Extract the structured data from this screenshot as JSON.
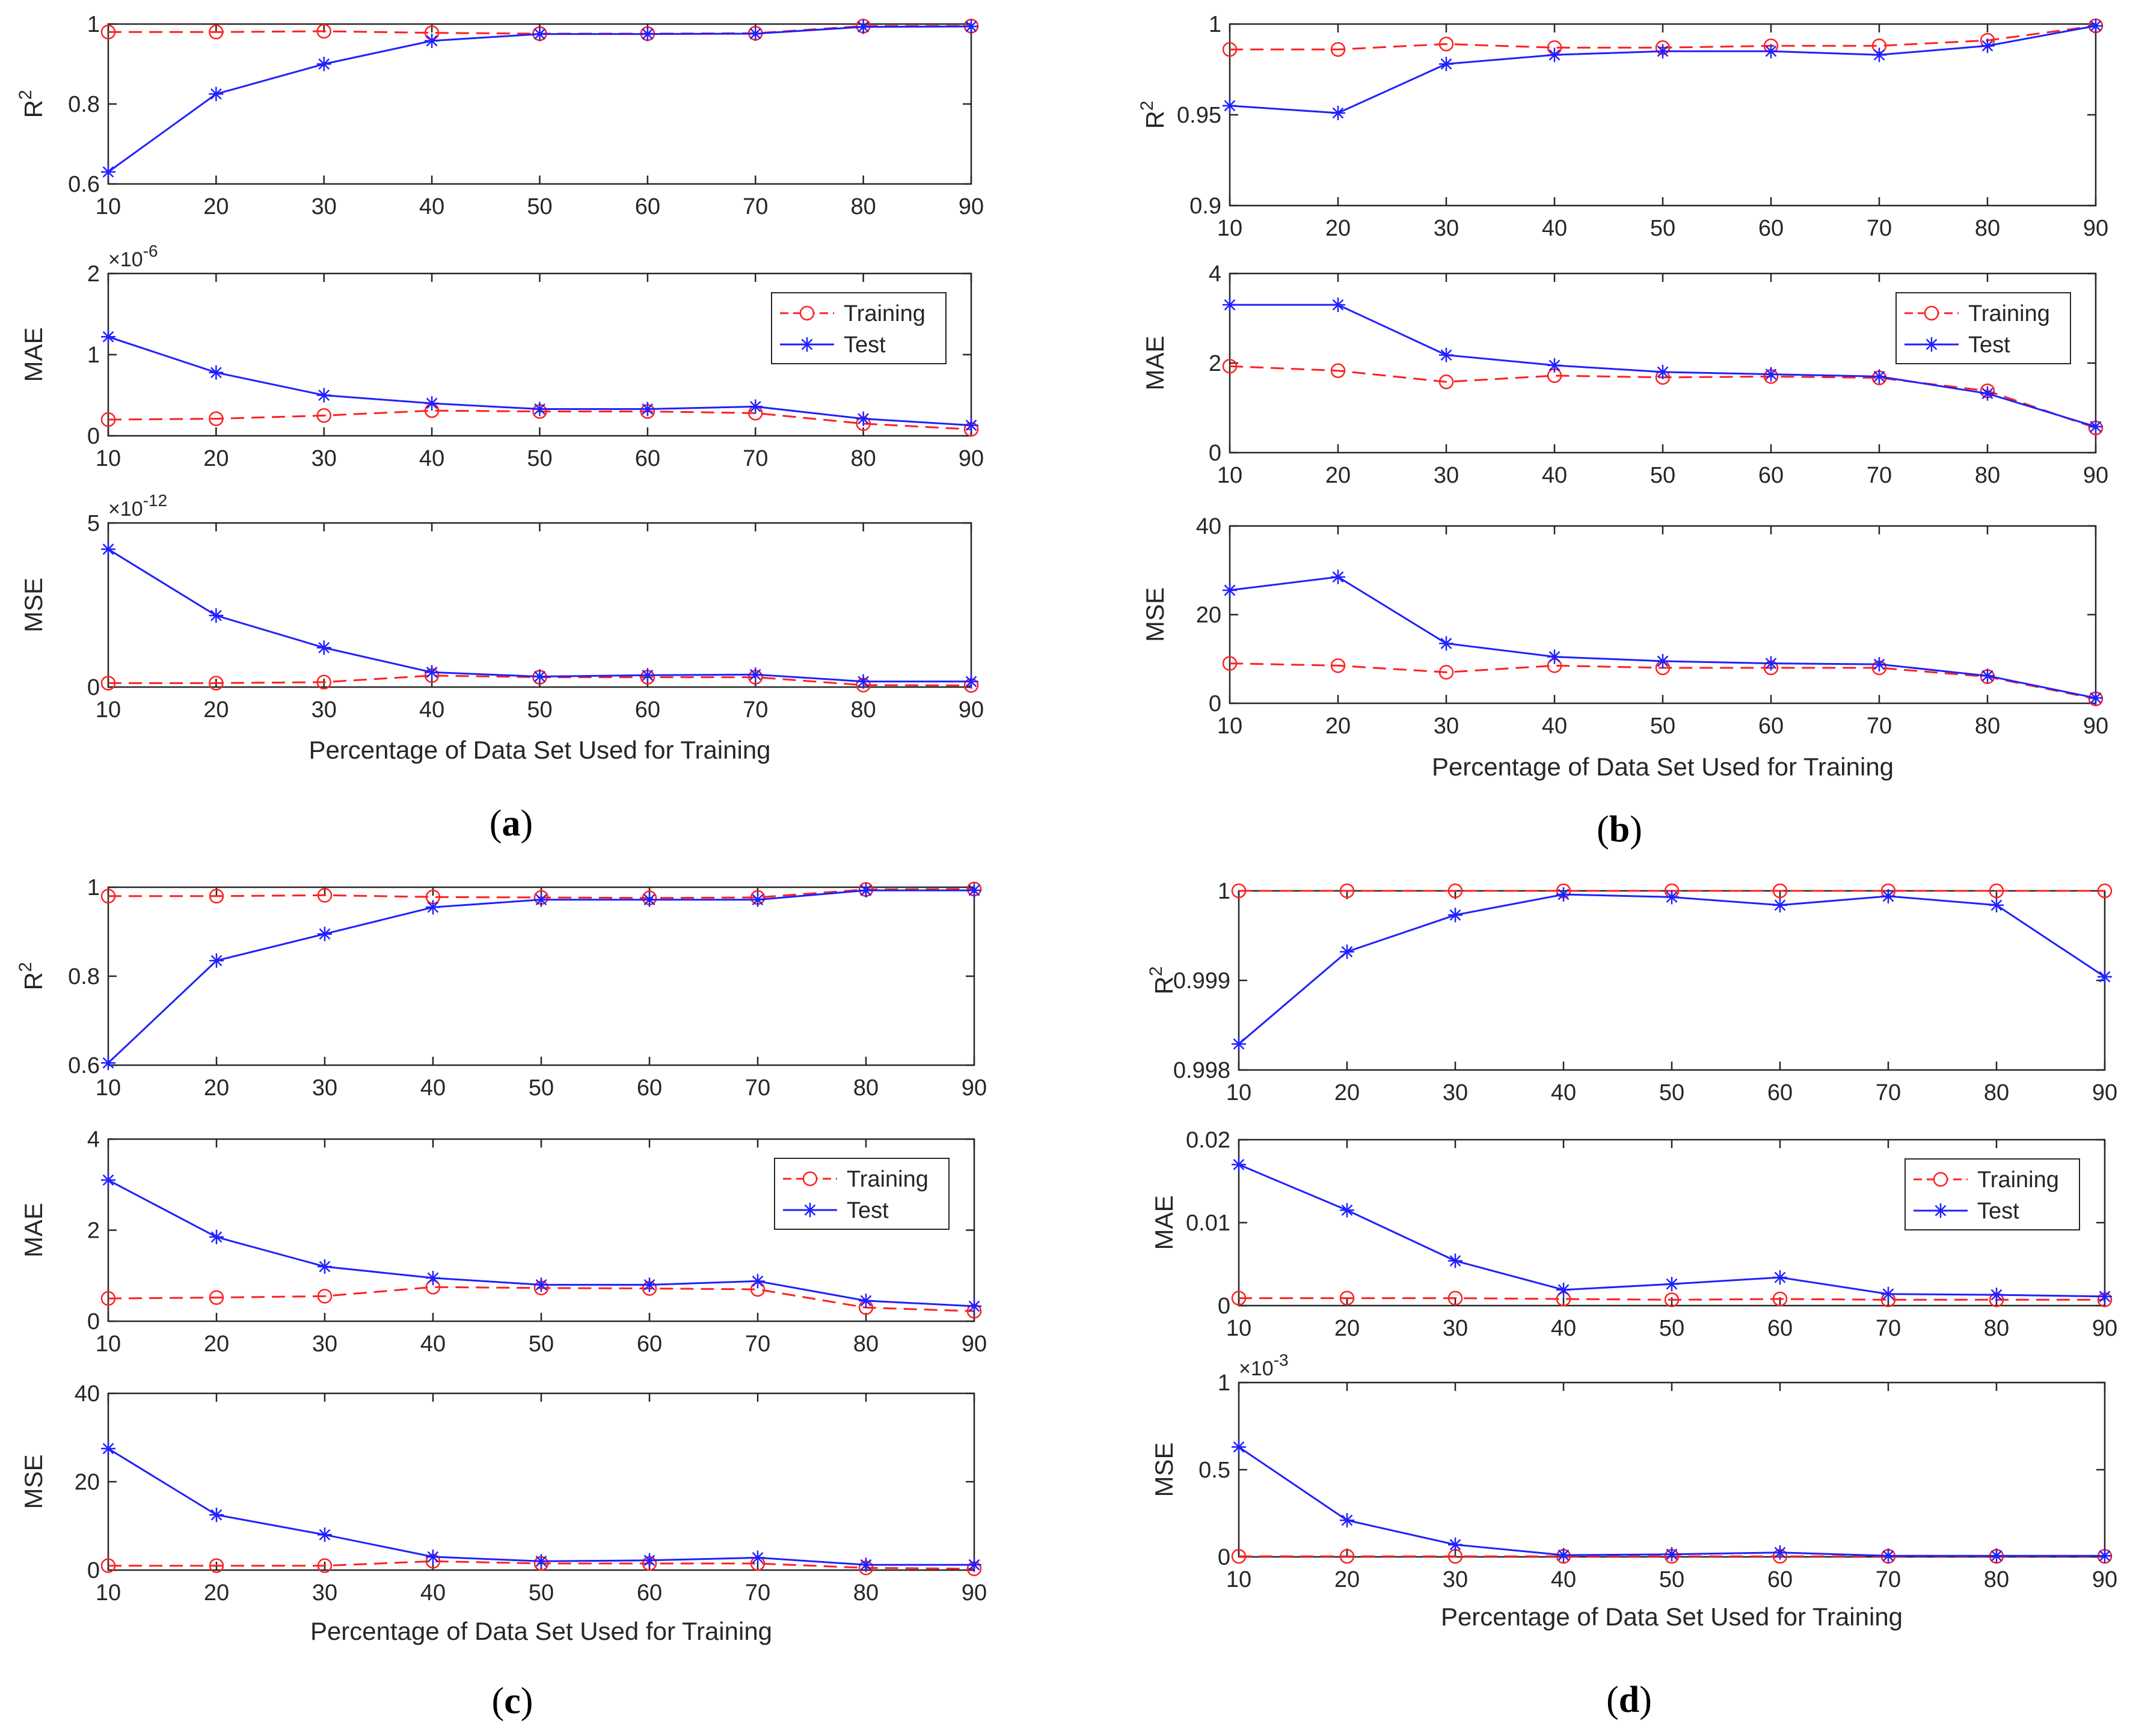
{
  "figure": {
    "panels": [
      {
        "id": "a",
        "caption": "(a)",
        "letter": "a",
        "xlabel": "Percentage of Data Set Used for Training"
      },
      {
        "id": "b",
        "caption": "(b)",
        "letter": "b",
        "xlabel": "Percentage of Data Set Used for Training"
      },
      {
        "id": "c",
        "caption": "(c)",
        "letter": "c",
        "xlabel": "Percentage of Data Set Used for Training"
      },
      {
        "id": "d",
        "caption": "(d)",
        "letter": "d",
        "xlabel": "Percentage of Data Set Used for Training"
      }
    ]
  },
  "chart_data": [
    {
      "type": "line",
      "panel": "a",
      "metric": "R2",
      "ylabel": "R",
      "ylabel_sup": "2",
      "exponent": "",
      "x": [
        10,
        20,
        30,
        40,
        50,
        60,
        70,
        80,
        90
      ],
      "xlim": [
        10,
        90
      ],
      "ylim": [
        0.6,
        1
      ],
      "yticks": [
        0.6,
        0.8,
        1
      ],
      "ytick_labels": [
        "0.6",
        "0.8",
        "1"
      ],
      "series": [
        {
          "name": "Training",
          "values": [
            0.98,
            0.98,
            0.982,
            0.978,
            0.976,
            0.976,
            0.977,
            0.995,
            0.995
          ]
        },
        {
          "name": "Test",
          "values": [
            0.63,
            0.825,
            0.9,
            0.958,
            0.975,
            0.975,
            0.976,
            0.993,
            0.994
          ]
        }
      ]
    },
    {
      "type": "line",
      "panel": "a",
      "metric": "MAE",
      "ylabel": "MAE",
      "ylabel_sup": "",
      "exponent": "-6",
      "x": [
        10,
        20,
        30,
        40,
        50,
        60,
        70,
        80,
        90
      ],
      "xlim": [
        10,
        90
      ],
      "ylim": [
        0,
        2
      ],
      "yticks": [
        0,
        1,
        2
      ],
      "ytick_labels": [
        "0",
        "1",
        "2"
      ],
      "legend": {
        "position": "upper-right",
        "entries": [
          "Training",
          "Test"
        ]
      },
      "series": [
        {
          "name": "Training",
          "values": [
            0.2,
            0.21,
            0.25,
            0.31,
            0.3,
            0.3,
            0.28,
            0.15,
            0.08
          ]
        },
        {
          "name": "Test",
          "values": [
            1.22,
            0.78,
            0.5,
            0.4,
            0.33,
            0.33,
            0.36,
            0.21,
            0.13
          ]
        }
      ]
    },
    {
      "type": "line",
      "panel": "a",
      "metric": "MSE",
      "ylabel": "MSE",
      "ylabel_sup": "",
      "exponent": "-12",
      "x": [
        10,
        20,
        30,
        40,
        50,
        60,
        70,
        80,
        90
      ],
      "xlim": [
        10,
        90
      ],
      "ylim": [
        0,
        5
      ],
      "yticks": [
        0,
        5
      ],
      "ytick_labels": [
        "0",
        "5"
      ],
      "series": [
        {
          "name": "Training",
          "values": [
            0.12,
            0.12,
            0.15,
            0.35,
            0.3,
            0.3,
            0.3,
            0.06,
            0.05
          ]
        },
        {
          "name": "Test",
          "values": [
            4.2,
            2.18,
            1.2,
            0.45,
            0.32,
            0.36,
            0.38,
            0.17,
            0.17
          ]
        }
      ]
    },
    {
      "type": "line",
      "panel": "b",
      "metric": "R2",
      "ylabel": "R",
      "ylabel_sup": "2",
      "exponent": "",
      "x": [
        10,
        20,
        30,
        40,
        50,
        60,
        70,
        80,
        90
      ],
      "xlim": [
        10,
        90
      ],
      "ylim": [
        0.9,
        1
      ],
      "yticks": [
        0.9,
        0.95,
        1
      ],
      "ytick_labels": [
        "0.9",
        "0.95",
        "1"
      ],
      "series": [
        {
          "name": "Training",
          "values": [
            0.986,
            0.986,
            0.989,
            0.987,
            0.987,
            0.988,
            0.988,
            0.991,
            0.999
          ]
        },
        {
          "name": "Test",
          "values": [
            0.955,
            0.951,
            0.978,
            0.983,
            0.985,
            0.985,
            0.983,
            0.988,
            0.999
          ]
        }
      ]
    },
    {
      "type": "line",
      "panel": "b",
      "metric": "MAE",
      "ylabel": "MAE",
      "ylabel_sup": "",
      "exponent": "",
      "x": [
        10,
        20,
        30,
        40,
        50,
        60,
        70,
        80,
        90
      ],
      "xlim": [
        10,
        90
      ],
      "ylim": [
        0,
        4
      ],
      "yticks": [
        0,
        2,
        4
      ],
      "ytick_labels": [
        "0",
        "2",
        "4"
      ],
      "legend": {
        "position": "upper-right",
        "entries": [
          "Training",
          "Test"
        ]
      },
      "series": [
        {
          "name": "Training",
          "values": [
            1.93,
            1.83,
            1.58,
            1.72,
            1.68,
            1.7,
            1.67,
            1.38,
            0.55
          ]
        },
        {
          "name": "Test",
          "values": [
            3.3,
            3.3,
            2.18,
            1.95,
            1.8,
            1.75,
            1.7,
            1.32,
            0.58
          ]
        }
      ]
    },
    {
      "type": "line",
      "panel": "b",
      "metric": "MSE",
      "ylabel": "MSE",
      "ylabel_sup": "",
      "exponent": "",
      "x": [
        10,
        20,
        30,
        40,
        50,
        60,
        70,
        80,
        90
      ],
      "xlim": [
        10,
        90
      ],
      "ylim": [
        0,
        40
      ],
      "yticks": [
        0,
        20,
        40
      ],
      "ytick_labels": [
        "0",
        "20",
        "40"
      ],
      "series": [
        {
          "name": "Training",
          "values": [
            9,
            8.5,
            7,
            8.5,
            8,
            8,
            8,
            6,
            1
          ]
        },
        {
          "name": "Test",
          "values": [
            25.5,
            28.5,
            13.5,
            10.5,
            9.5,
            9,
            8.8,
            6.2,
            1.2
          ]
        }
      ]
    },
    {
      "type": "line",
      "panel": "c",
      "metric": "R2",
      "ylabel": "R",
      "ylabel_sup": "2",
      "exponent": "",
      "x": [
        10,
        20,
        30,
        40,
        50,
        60,
        70,
        80,
        90
      ],
      "xlim": [
        10,
        90
      ],
      "ylim": [
        0.6,
        1
      ],
      "yticks": [
        0.6,
        0.8,
        1
      ],
      "ytick_labels": [
        "0.6",
        "0.8",
        "1"
      ],
      "series": [
        {
          "name": "Training",
          "values": [
            0.98,
            0.98,
            0.982,
            0.978,
            0.977,
            0.976,
            0.977,
            0.995,
            0.996
          ]
        },
        {
          "name": "Test",
          "values": [
            0.605,
            0.835,
            0.895,
            0.955,
            0.972,
            0.972,
            0.972,
            0.993,
            0.993
          ]
        }
      ]
    },
    {
      "type": "line",
      "panel": "c",
      "metric": "MAE",
      "ylabel": "MAE",
      "ylabel_sup": "",
      "exponent": "",
      "x": [
        10,
        20,
        30,
        40,
        50,
        60,
        70,
        80,
        90
      ],
      "xlim": [
        10,
        90
      ],
      "ylim": [
        0,
        4
      ],
      "yticks": [
        0,
        2,
        4
      ],
      "ytick_labels": [
        "0",
        "2",
        "4"
      ],
      "legend": {
        "position": "upper-right",
        "entries": [
          "Training",
          "Test"
        ]
      },
      "series": [
        {
          "name": "Training",
          "values": [
            0.5,
            0.52,
            0.55,
            0.75,
            0.73,
            0.72,
            0.7,
            0.3,
            0.22
          ]
        },
        {
          "name": "Test",
          "values": [
            3.1,
            1.85,
            1.2,
            0.95,
            0.8,
            0.8,
            0.88,
            0.45,
            0.33
          ]
        }
      ]
    },
    {
      "type": "line",
      "panel": "c",
      "metric": "MSE",
      "ylabel": "MSE",
      "ylabel_sup": "",
      "exponent": "",
      "x": [
        10,
        20,
        30,
        40,
        50,
        60,
        70,
        80,
        90
      ],
      "xlim": [
        10,
        90
      ],
      "ylim": [
        0,
        40
      ],
      "yticks": [
        0,
        20,
        40
      ],
      "ytick_labels": [
        "0",
        "20",
        "40"
      ],
      "series": [
        {
          "name": "Training",
          "values": [
            1,
            1,
            1,
            2,
            1.5,
            1.5,
            1.5,
            0.5,
            0.3
          ]
        },
        {
          "name": "Test",
          "values": [
            27.5,
            12.5,
            8,
            3,
            2,
            2.2,
            2.8,
            1.2,
            1.2
          ]
        }
      ]
    },
    {
      "type": "line",
      "panel": "d",
      "metric": "R2",
      "ylabel": "R",
      "ylabel_sup": "2",
      "exponent": "",
      "x": [
        10,
        20,
        30,
        40,
        50,
        60,
        70,
        80,
        90
      ],
      "xlim": [
        10,
        90
      ],
      "ylim": [
        0.998,
        1
      ],
      "yticks": [
        0.998,
        0.999,
        1
      ],
      "ytick_labels": [
        "0.998",
        "0.999",
        "1"
      ],
      "series": [
        {
          "name": "Training",
          "values": [
            1,
            1,
            1,
            1,
            1,
            1,
            1,
            1,
            1
          ]
        },
        {
          "name": "Test",
          "values": [
            0.99829,
            0.99932,
            0.99973,
            0.99996,
            0.99993,
            0.99984,
            0.99994,
            0.99984,
            0.99904
          ]
        }
      ]
    },
    {
      "type": "line",
      "panel": "d",
      "metric": "MAE",
      "ylabel": "MAE",
      "ylabel_sup": "",
      "exponent": "",
      "x": [
        10,
        20,
        30,
        40,
        50,
        60,
        70,
        80,
        90
      ],
      "xlim": [
        10,
        90
      ],
      "ylim": [
        0,
        0.02
      ],
      "yticks": [
        0,
        0.01,
        0.02
      ],
      "ytick_labels": [
        "0",
        "0.01",
        "0.02"
      ],
      "legend": {
        "position": "upper-right",
        "entries": [
          "Training",
          "Test"
        ]
      },
      "series": [
        {
          "name": "Training",
          "values": [
            0.0009,
            0.0009,
            0.0009,
            0.0008,
            0.0007,
            0.0008,
            0.0007,
            0.0007,
            0.0007
          ]
        },
        {
          "name": "Test",
          "values": [
            0.017,
            0.0115,
            0.0054,
            0.0019,
            0.0026,
            0.0034,
            0.0014,
            0.0013,
            0.0011
          ]
        }
      ]
    },
    {
      "type": "line",
      "panel": "d",
      "metric": "MSE",
      "ylabel": "MSE",
      "ylabel_sup": "",
      "exponent": "-3",
      "x": [
        10,
        20,
        30,
        40,
        50,
        60,
        70,
        80,
        90
      ],
      "xlim": [
        10,
        90
      ],
      "ylim": [
        0,
        1
      ],
      "yticks": [
        0,
        0.5,
        1
      ],
      "ytick_labels": [
        "0",
        "0.5",
        "1"
      ],
      "series": [
        {
          "name": "Training",
          "values": [
            0.003,
            0.003,
            0.003,
            0.003,
            0.003,
            0.003,
            0.003,
            0.003,
            0.003
          ]
        },
        {
          "name": "Test",
          "values": [
            0.63,
            0.21,
            0.07,
            0.01,
            0.015,
            0.025,
            0.006,
            0.006,
            0.006
          ]
        }
      ]
    }
  ],
  "colors": {
    "training": "#ff2020",
    "test": "#2020ff",
    "axis": "#262626"
  }
}
